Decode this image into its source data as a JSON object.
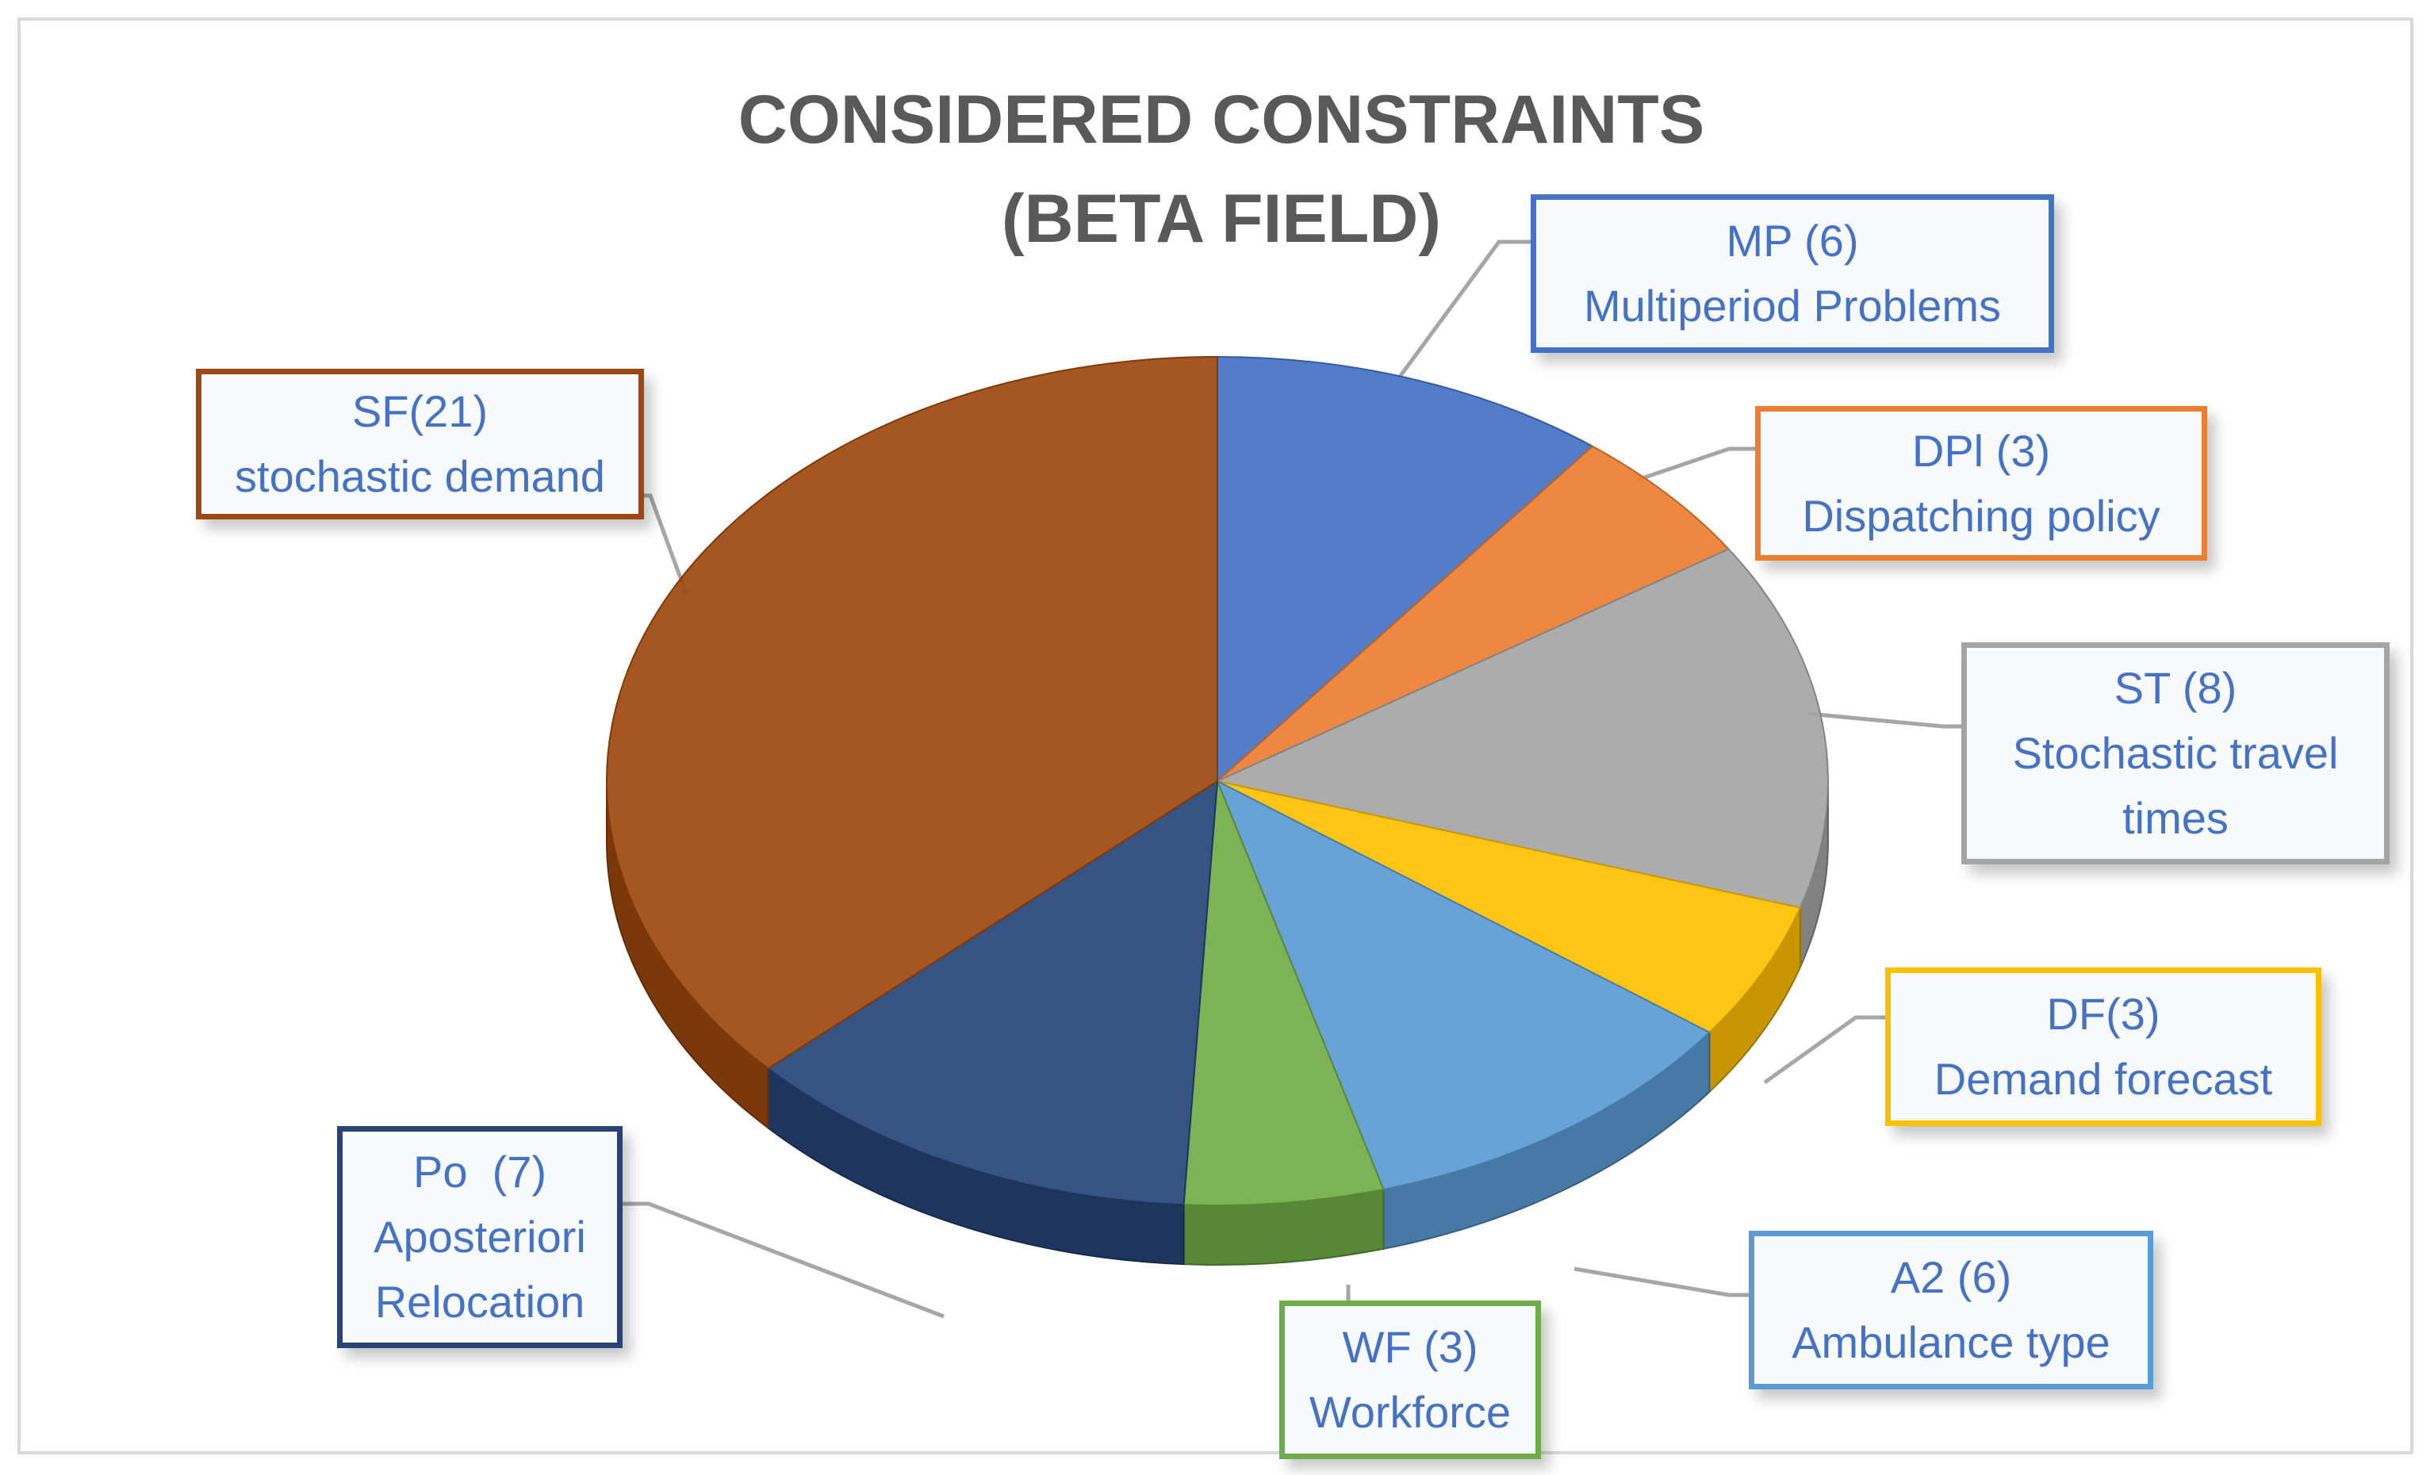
{
  "chart_data": {
    "type": "pie",
    "title": [
      "CONSIDERED CONSTRAINTS",
      "(BETA FIELD)"
    ],
    "start_angle_deg": -90,
    "slices": [
      {
        "code": "MP (6)",
        "desc": [
          "Multiperiod Problems"
        ],
        "value": 6,
        "color": "#4472c4",
        "box_border": "#4472c4"
      },
      {
        "code": "DPl (3)",
        "desc": [
          "Dispatching policy"
        ],
        "value": 3,
        "color": "#ed7d31",
        "box_border": "#ed7d31"
      },
      {
        "code": "ST (8)",
        "desc": [
          "Stochastic travel",
          "times"
        ],
        "value": 8,
        "color": "#a5a5a5",
        "box_border": "#a5a5a5"
      },
      {
        "code": "DF(3)",
        "desc": [
          "Demand forecast"
        ],
        "value": 3,
        "color": "#ffc000",
        "box_border": "#ffc000"
      },
      {
        "code": "A2 (6)",
        "desc": [
          "Ambulance type"
        ],
        "value": 6,
        "color": "#5b9bd5",
        "box_border": "#5b9bd5"
      },
      {
        "code": "WF (3)",
        "desc": [
          "Workforce"
        ],
        "value": 3,
        "color": "#70ad47",
        "box_border": "#70ad47"
      },
      {
        "code": "Po  (7)",
        "desc": [
          "Aposteriori",
          "Relocation"
        ],
        "value": 7,
        "color": "#264478",
        "box_border": "#264478"
      },
      {
        "code": "SF(21)",
        "desc": [
          "stochastic demand"
        ],
        "value": 21,
        "color": "#9e480e",
        "box_border": "#9e480e"
      }
    ]
  }
}
